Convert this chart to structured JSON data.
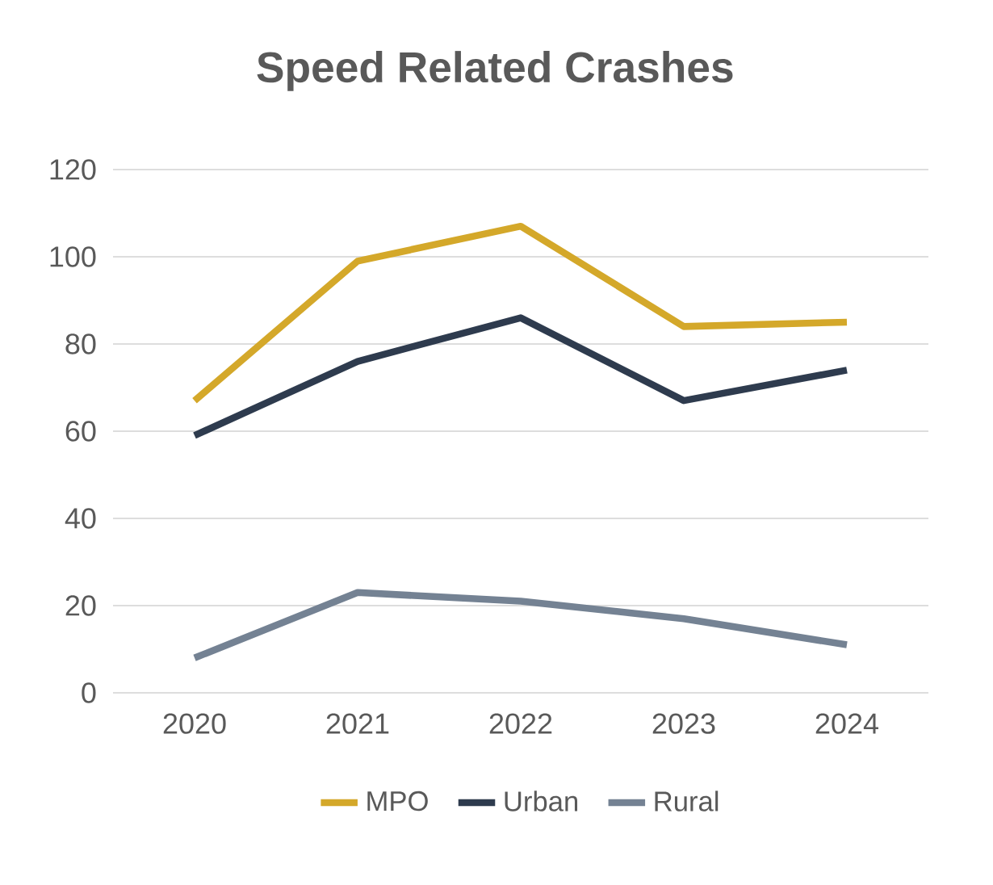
{
  "chart_data": {
    "type": "line",
    "title": "Speed Related Crashes",
    "categories": [
      "2020",
      "2021",
      "2022",
      "2023",
      "2024"
    ],
    "series": [
      {
        "name": "MPO",
        "color": "#d4a82a",
        "values": [
          67,
          99,
          107,
          84,
          85
        ]
      },
      {
        "name": "Urban",
        "color": "#2e3b4e",
        "values": [
          59,
          76,
          86,
          67,
          74
        ]
      },
      {
        "name": "Rural",
        "color": "#748293",
        "values": [
          8,
          23,
          21,
          17,
          11
        ]
      }
    ],
    "ylim": [
      0,
      120
    ],
    "yticks": [
      0,
      20,
      40,
      60,
      80,
      100,
      120
    ],
    "grid": "y",
    "legend": "bottom",
    "marker": "none",
    "line_style": "solid"
  }
}
